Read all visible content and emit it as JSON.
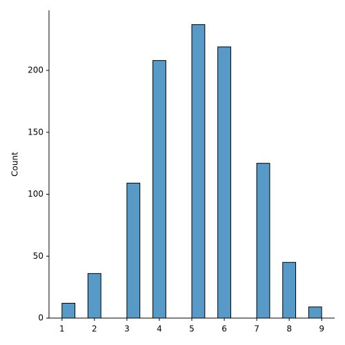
{
  "chart_data": {
    "type": "histogram",
    "ylabel": "Count",
    "bins": [
      1.0,
      1.4,
      1.8,
      2.2,
      2.6,
      3.0,
      3.4,
      3.8,
      4.2,
      4.6,
      5.0,
      5.4,
      5.8,
      6.2,
      6.6,
      7.0,
      7.4,
      7.8,
      8.2,
      8.6,
      9.0
    ],
    "values": [
      12,
      0,
      36,
      0,
      0,
      109,
      0,
      208,
      0,
      0,
      237,
      0,
      219,
      0,
      0,
      125,
      0,
      45,
      0,
      9
    ],
    "color": "#5799c7",
    "xlim": [
      0.6,
      9.4
    ],
    "xticks": [
      1,
      2,
      3,
      4,
      5,
      6,
      7,
      8,
      9
    ],
    "ylim": [
      0,
      248.5
    ],
    "yticks": [
      0,
      50,
      100,
      150,
      200
    ],
    "grid": false
  }
}
